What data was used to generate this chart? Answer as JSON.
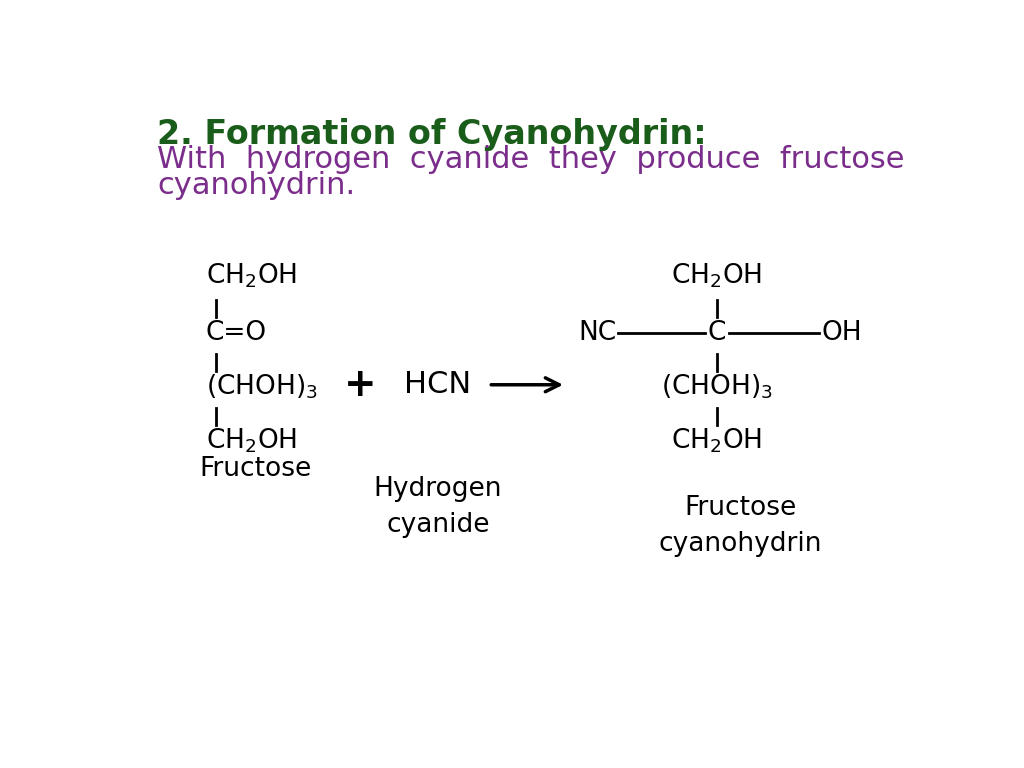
{
  "title_text": "2. Formation of Cyanohydrin:",
  "title_color": "#1a5c1a",
  "subtitle_line1": "With  hydrogen  cyanide  they  produce  fructose",
  "subtitle_line2": "cyanohydrin.",
  "subtitle_color": "#7b2d8b",
  "bg_color": "#ffffff",
  "title_fontsize": 24,
  "subtitle_fontsize": 22,
  "chem_fontsize": 19,
  "label_fontsize": 19,
  "plus_fontsize": 28,
  "black": "#000000"
}
